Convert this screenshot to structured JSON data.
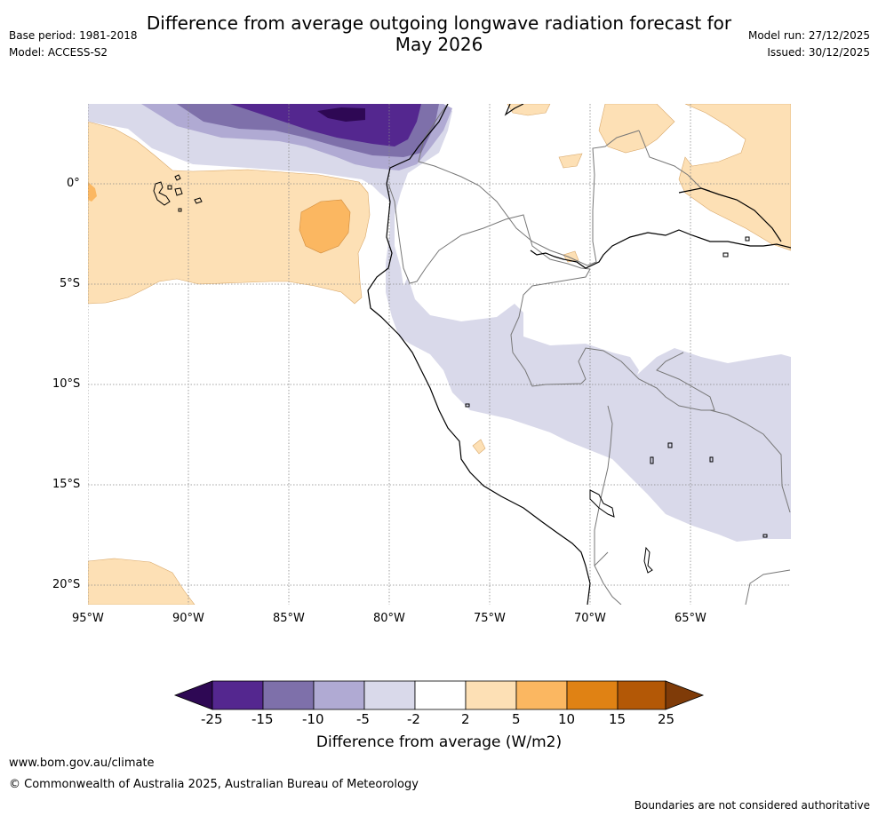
{
  "header": {
    "title_line1": "Difference from average outgoing longwave radiation forecast for",
    "title_line2": "May 2026",
    "base_period": "Base period: 1981-2018",
    "model": "Model: ACCESS-S2",
    "model_run": "Model run: 27/12/2025",
    "issued": "Issued: 30/12/2025"
  },
  "map": {
    "lat_labels": [
      "0°",
      "5°S",
      "10°S",
      "15°S",
      "20°S"
    ],
    "lon_labels": [
      "95°W",
      "90°W",
      "85°W",
      "80°W",
      "75°W",
      "70°W",
      "65°W"
    ],
    "colors": {
      "neg25": "#2e0854",
      "neg15": "#54278f",
      "neg10": "#7e70aa",
      "neg5": "#b0aad3",
      "neg2": "#d9d9ea",
      "zero": "#ffffff",
      "pos2": "#fde0b5",
      "pos5": "#fbb761",
      "pos10": "#e08214",
      "pos15": "#b35806",
      "pos25": "#7f3b08"
    }
  },
  "colorbar": {
    "ticks": [
      "-25",
      "-15",
      "-10",
      "-5",
      "-2",
      "2",
      "5",
      "10",
      "15",
      "25"
    ],
    "label": "Difference from average (W/m2)"
  },
  "footer": {
    "url": "www.bom.gov.au/climate",
    "copyright": "© Commonwealth of Australia 2025, Australian Bureau of Meteorology",
    "disclaimer": "Boundaries are not considered authoritative"
  }
}
